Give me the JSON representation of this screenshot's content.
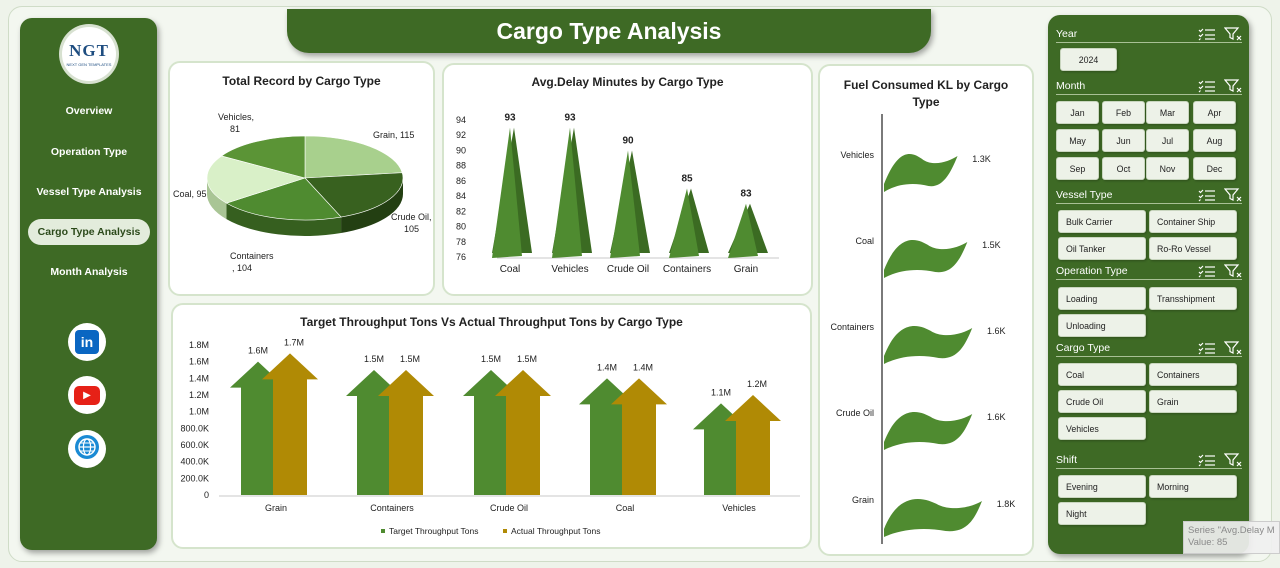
{
  "nav": {
    "logo": {
      "mark": "NGT",
      "sub": "NEXT GEN TEMPLATES"
    },
    "items": [
      {
        "label": "Overview",
        "active": false
      },
      {
        "label": "Operation Type",
        "active": false
      },
      {
        "label": "Vessel Type Analysis",
        "active": false
      },
      {
        "label": "Cargo Type Analysis",
        "active": true
      },
      {
        "label": "Month Analysis",
        "active": false
      }
    ],
    "social": [
      {
        "icon": "linkedin-icon",
        "glyph": "in",
        "color": "#0a66c2"
      },
      {
        "icon": "youtube-icon",
        "glyph": "▶",
        "color": "#e62117"
      },
      {
        "icon": "globe-icon",
        "glyph": "",
        "color": "#1a8ad4"
      }
    ]
  },
  "header": {
    "title": "Cargo Type Analysis"
  },
  "colors": {
    "green": "#4f8b30",
    "gold": "#b08a05",
    "panel": "#3e6a25"
  },
  "charts": {
    "pie": {
      "title": "Total Record by Cargo Type"
    },
    "delay": {
      "title": "Avg.Delay Minutes by Cargo Type"
    },
    "fuel": {
      "title": "Fuel Consumed KL by Cargo Type"
    },
    "throughput": {
      "title": "Target Throughput Tons Vs Actual Throughput Tons by Cargo Type"
    }
  },
  "chart_data": [
    {
      "type": "pie",
      "title": "Total Record by Cargo Type",
      "categories": [
        "Grain",
        "Crude Oil",
        "Containers",
        "Coal",
        "Vehicles"
      ],
      "values": [
        115,
        105,
        104,
        95,
        81
      ],
      "labels": [
        "Grain, 115",
        "Crude Oil, 105",
        "Containers, 104",
        "Coal, 95",
        "Vehicles, 81"
      ]
    },
    {
      "type": "bar",
      "title": "Avg.Delay Minutes by Cargo Type",
      "categories": [
        "Coal",
        "Vehicles",
        "Crude Oil",
        "Containers",
        "Grain"
      ],
      "values": [
        93,
        93,
        90,
        85,
        83
      ],
      "ylim": [
        76,
        94
      ],
      "yticks": [
        "94",
        "92",
        "90",
        "88",
        "86",
        "84",
        "82",
        "80",
        "78",
        "76"
      ]
    },
    {
      "type": "bar",
      "title": "Fuel Consumed KL by Cargo Type",
      "categories": [
        "Vehicles",
        "Coal",
        "Containers",
        "Crude Oil",
        "Grain"
      ],
      "values": [
        1300,
        1500,
        1600,
        1600,
        1800
      ],
      "labels": [
        "1.3K",
        "1.5K",
        "1.6K",
        "1.6K",
        "1.8K"
      ]
    },
    {
      "type": "bar",
      "title": "Target Throughput Tons Vs Actual Throughput Tons by Cargo Type",
      "categories": [
        "Grain",
        "Containers",
        "Crude Oil",
        "Coal",
        "Vehicles"
      ],
      "series": [
        {
          "name": "Target Throughput Tons",
          "values": [
            1600000,
            1500000,
            1500000,
            1400000,
            1100000
          ],
          "labels": [
            "1.6M",
            "1.5M",
            "1.5M",
            "1.4M",
            "1.1M"
          ]
        },
        {
          "name": "Actual Throughput Tons",
          "values": [
            1700000,
            1500000,
            1500000,
            1400000,
            1200000
          ],
          "labels": [
            "1.7M",
            "1.5M",
            "1.5M",
            "1.4M",
            "1.2M"
          ]
        }
      ],
      "ylim": [
        0,
        1800000
      ],
      "yticks": [
        "1.8M",
        "1.6M",
        "1.4M",
        "1.2M",
        "1.0M",
        "800.0K",
        "600.0K",
        "400.0K",
        "200.0K",
        "0"
      ]
    }
  ],
  "filters": [
    {
      "label": "Year",
      "options": [
        "2024"
      ]
    },
    {
      "label": "Month",
      "options": [
        "Jan",
        "Feb",
        "Mar",
        "Apr",
        "May",
        "Jun",
        "Jul",
        "Aug",
        "Sep",
        "Oct",
        "Nov",
        "Dec"
      ]
    },
    {
      "label": "Vessel Type",
      "options": [
        "Bulk Carrier",
        "Container Ship",
        "Oil Tanker",
        "Ro-Ro Vessel"
      ]
    },
    {
      "label": "Operation Type",
      "options": [
        "Loading",
        "Transshipment",
        "Unloading"
      ]
    },
    {
      "label": "Cargo Type",
      "options": [
        "Coal",
        "Containers",
        "Crude Oil",
        "Grain",
        "Vehicles"
      ]
    },
    {
      "label": "Shift",
      "options": [
        "Evening",
        "Morning",
        "Night"
      ]
    }
  ],
  "tooltip": {
    "line1": "Series \"Avg.Delay M",
    "line2": "Value: 85"
  }
}
